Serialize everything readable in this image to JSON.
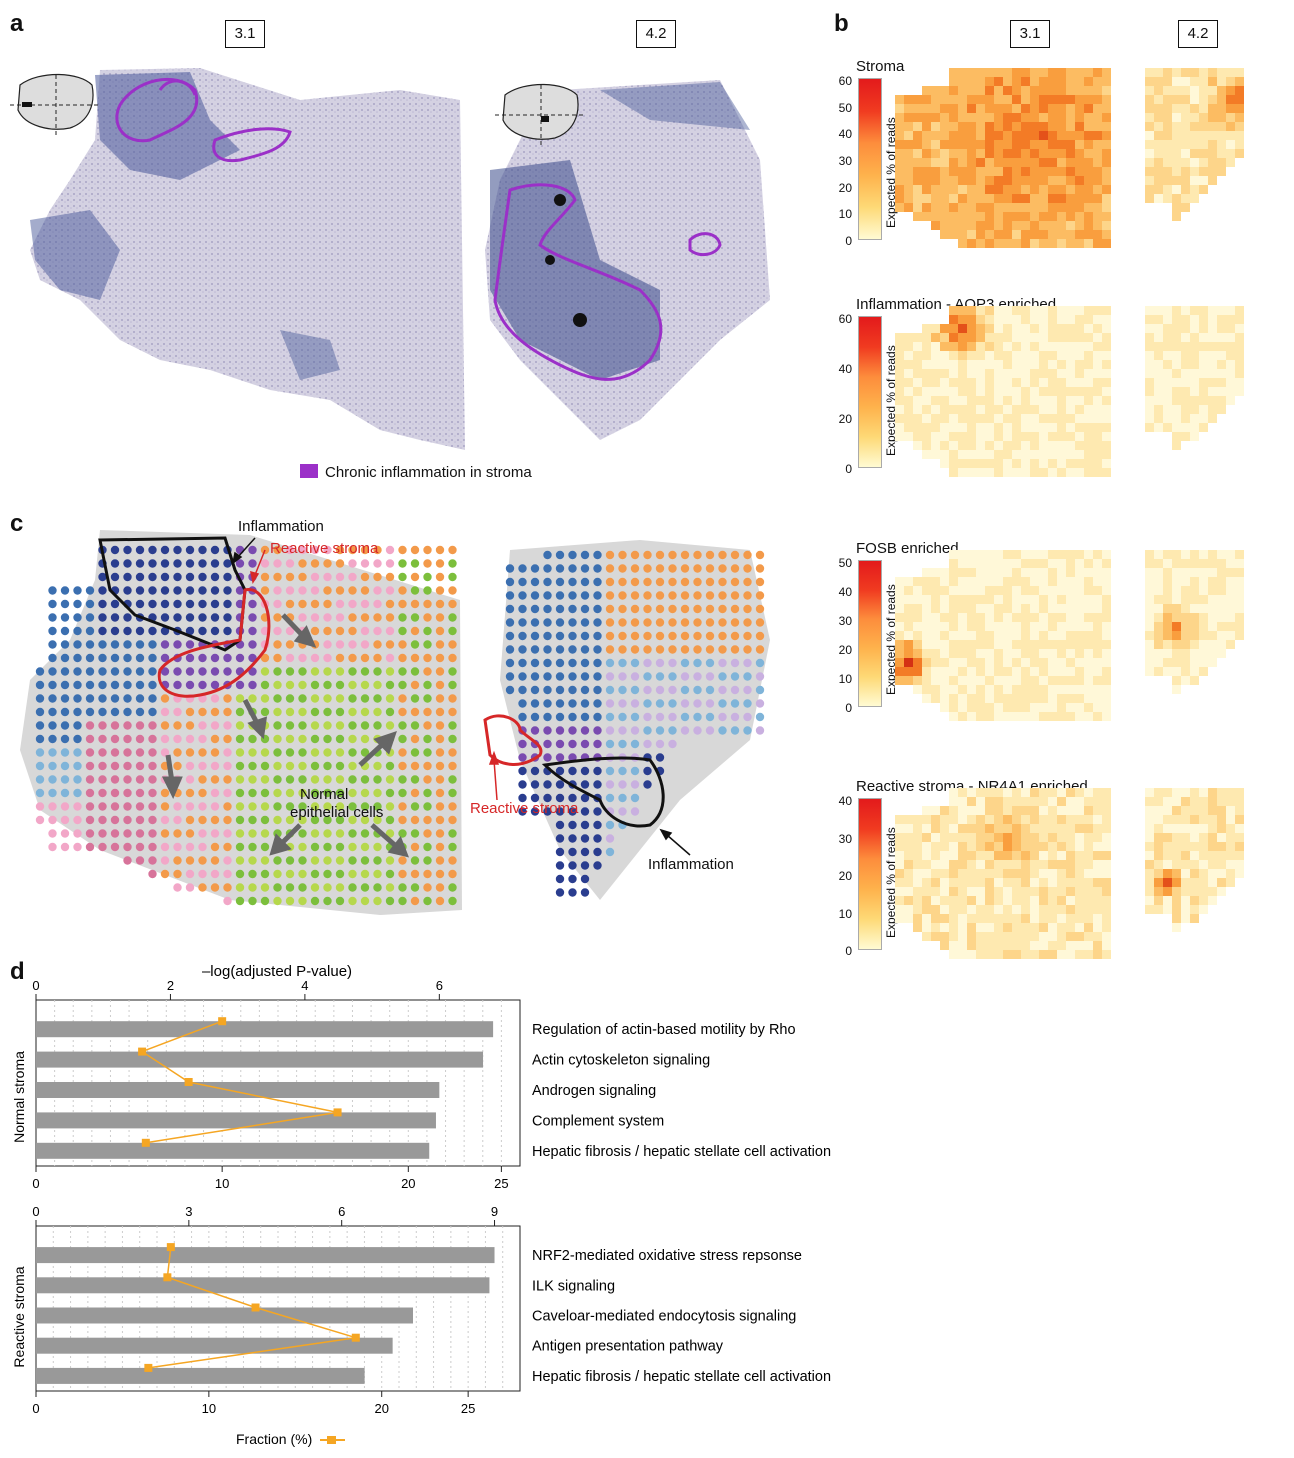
{
  "panels": {
    "a": "a",
    "b": "b",
    "c": "c",
    "d": "d"
  },
  "panel_a": {
    "section_labels": [
      "3.1",
      "4.2"
    ],
    "legend_label": "Chronic inflammation in stroma",
    "legend_color": "#9b30c8"
  },
  "panel_b": {
    "section_labels": [
      "3.1",
      "4.2"
    ],
    "colorbar_label": "Expected % of reads",
    "heatmaps": [
      {
        "title": "Stroma",
        "ticks": [
          "60",
          "50",
          "40",
          "30",
          "20",
          "10",
          "0"
        ]
      },
      {
        "title": "Inflammation - AQP3 enriched",
        "ticks": [
          "60",
          "40",
          "20",
          "0"
        ]
      },
      {
        "title": "FOSB enriched",
        "ticks": [
          "50",
          "40",
          "30",
          "20",
          "10",
          "0"
        ]
      },
      {
        "title": "Reactive stroma - NR4A1 enriched",
        "ticks": [
          "40",
          "30",
          "20",
          "10",
          "0"
        ]
      }
    ]
  },
  "panel_c": {
    "inflammation_label_1": "Inflammation",
    "reactive_label_1": "Reactive stroma",
    "normal_label_line1": "Normal",
    "normal_label_line2": "epithelial cells",
    "reactive_label_2": "Reactive stroma",
    "inflammation_label_2": "Inflammation"
  },
  "chart_data": [
    {
      "type": "bar",
      "group_label": "Normal stroma",
      "top_axis_label": "–log(adjusted P-value)",
      "top_axis_ticks": [
        "0",
        "2",
        "4",
        "6"
      ],
      "bottom_axis_ticks": [
        "0",
        "10",
        "20",
        "25"
      ],
      "categories": [
        "Regulation of actin-based motility by Rho",
        "Actin cytoskeleton signaling",
        "Androgen signaling",
        "Complement system",
        "Hepatic fibrosis / hepatic stellate cell activation"
      ],
      "series": [
        {
          "name": "-log(adjusted P-value)",
          "values": [
            6.8,
            6.65,
            6.0,
            5.95,
            5.85
          ]
        },
        {
          "name": "Fraction (%)",
          "values": [
            10,
            5.7,
            8.2,
            16.2,
            5.9
          ]
        }
      ],
      "xlim_top": [
        0,
        7.2
      ],
      "xlim_bottom": [
        0,
        26
      ]
    },
    {
      "type": "bar",
      "group_label": "Reactive stroma",
      "top_axis_ticks": [
        "0",
        "3",
        "6",
        "9"
      ],
      "bottom_axis_ticks": [
        "0",
        "10",
        "20",
        "25"
      ],
      "categories": [
        "NRF2-mediated oxidative stress repsonse",
        "ILK signaling",
        "Caveloar-mediated endocytosis signaling",
        "Antigen presentation pathway",
        "Hepatic fibrosis / hepatic stellate cell activation"
      ],
      "series": [
        {
          "name": "-log(adjusted P-value)",
          "values": [
            9.0,
            8.9,
            7.4,
            7.0,
            6.45
          ]
        },
        {
          "name": "Fraction (%)",
          "values": [
            7.8,
            7.6,
            12.7,
            18.5,
            6.5
          ]
        }
      ],
      "xlim_top": [
        0,
        9.5
      ],
      "xlim_bottom": [
        0,
        28
      ]
    }
  ],
  "legend_d": {
    "label": "Fraction (%)",
    "color": "#f5a623",
    "bar_color": "#999999"
  }
}
